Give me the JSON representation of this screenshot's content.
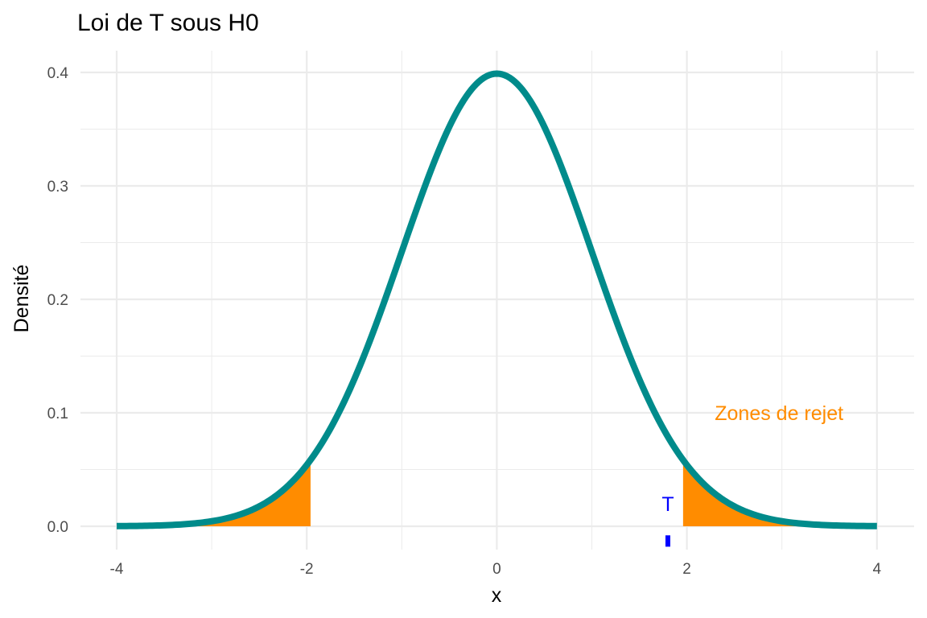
{
  "chart_data": {
    "type": "area",
    "title": "Loi de T sous H0",
    "xlabel": "x",
    "ylabel": "Densité",
    "xlim": [
      -4,
      4
    ],
    "ylim": [
      0,
      0.4
    ],
    "x_ticks": [
      -4,
      -2,
      0,
      2,
      4
    ],
    "y_ticks": [
      0.0,
      0.1,
      0.2,
      0.3,
      0.4
    ],
    "x_tick_labels": [
      "-4",
      "-2",
      "0",
      "2",
      "4"
    ],
    "y_tick_labels": [
      "0.0",
      "0.1",
      "0.2",
      "0.3",
      "0.4"
    ],
    "grid": true,
    "curve": {
      "distribution": "normal",
      "mean": 0,
      "sd": 1,
      "x_range": [
        -4,
        4
      ],
      "color": "#008b8b"
    },
    "rejection_zones": {
      "label": "Zones de rejet",
      "label_position": {
        "x": 2.97,
        "y": 0.1
      },
      "color": "#ff8c00",
      "left": [
        -4,
        -1.96
      ],
      "right": [
        1.96,
        4
      ]
    },
    "statistic": {
      "label": "T",
      "value": 1.8,
      "color": "#0000ff",
      "segment_y": [
        -0.018,
        -0.008
      ],
      "label_y": 0.02
    }
  }
}
